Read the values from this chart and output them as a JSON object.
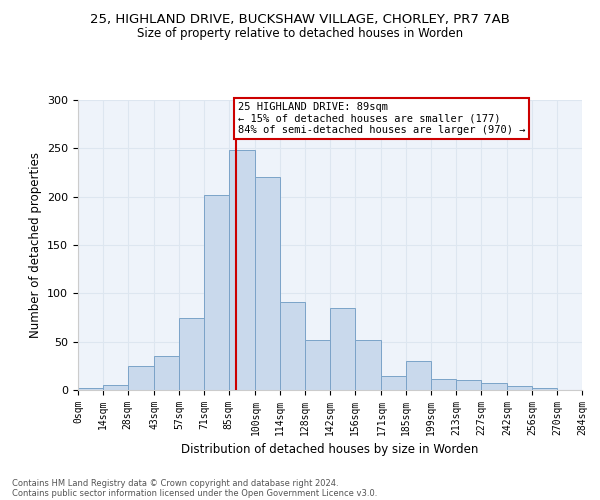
{
  "title_line1": "25, HIGHLAND DRIVE, BUCKSHAW VILLAGE, CHORLEY, PR7 7AB",
  "title_line2": "Size of property relative to detached houses in Worden",
  "xlabel": "Distribution of detached houses by size in Worden",
  "ylabel": "Number of detached properties",
  "footer_line1": "Contains HM Land Registry data © Crown copyright and database right 2024.",
  "footer_line2": "Contains public sector information licensed under the Open Government Licence v3.0.",
  "annotation_title": "25 HIGHLAND DRIVE: 89sqm",
  "annotation_line2": "← 15% of detached houses are smaller (177)",
  "annotation_line3": "84% of semi-detached houses are larger (970) →",
  "property_size": 89,
  "bar_color": "#c9d9ec",
  "bar_edge_color": "#7ba3c8",
  "vline_color": "#cc0000",
  "annotation_box_color": "#cc0000",
  "bin_edges": [
    0,
    14,
    28,
    43,
    57,
    71,
    85,
    100,
    114,
    128,
    142,
    156,
    171,
    185,
    199,
    213,
    227,
    242,
    256,
    270,
    284
  ],
  "bin_counts": [
    2,
    5,
    25,
    35,
    75,
    202,
    248,
    220,
    91,
    52,
    85,
    52,
    15,
    30,
    11,
    10,
    7,
    4,
    2,
    0
  ],
  "ylim": [
    0,
    300
  ],
  "xlim": [
    0,
    284
  ],
  "grid_color": "#dde6f0",
  "background_color": "#eef3fa",
  "tick_labels": [
    "0sqm",
    "14sqm",
    "28sqm",
    "43sqm",
    "57sqm",
    "71sqm",
    "85sqm",
    "100sqm",
    "114sqm",
    "128sqm",
    "142sqm",
    "156sqm",
    "171sqm",
    "185sqm",
    "199sqm",
    "213sqm",
    "227sqm",
    "242sqm",
    "256sqm",
    "270sqm",
    "284sqm"
  ]
}
